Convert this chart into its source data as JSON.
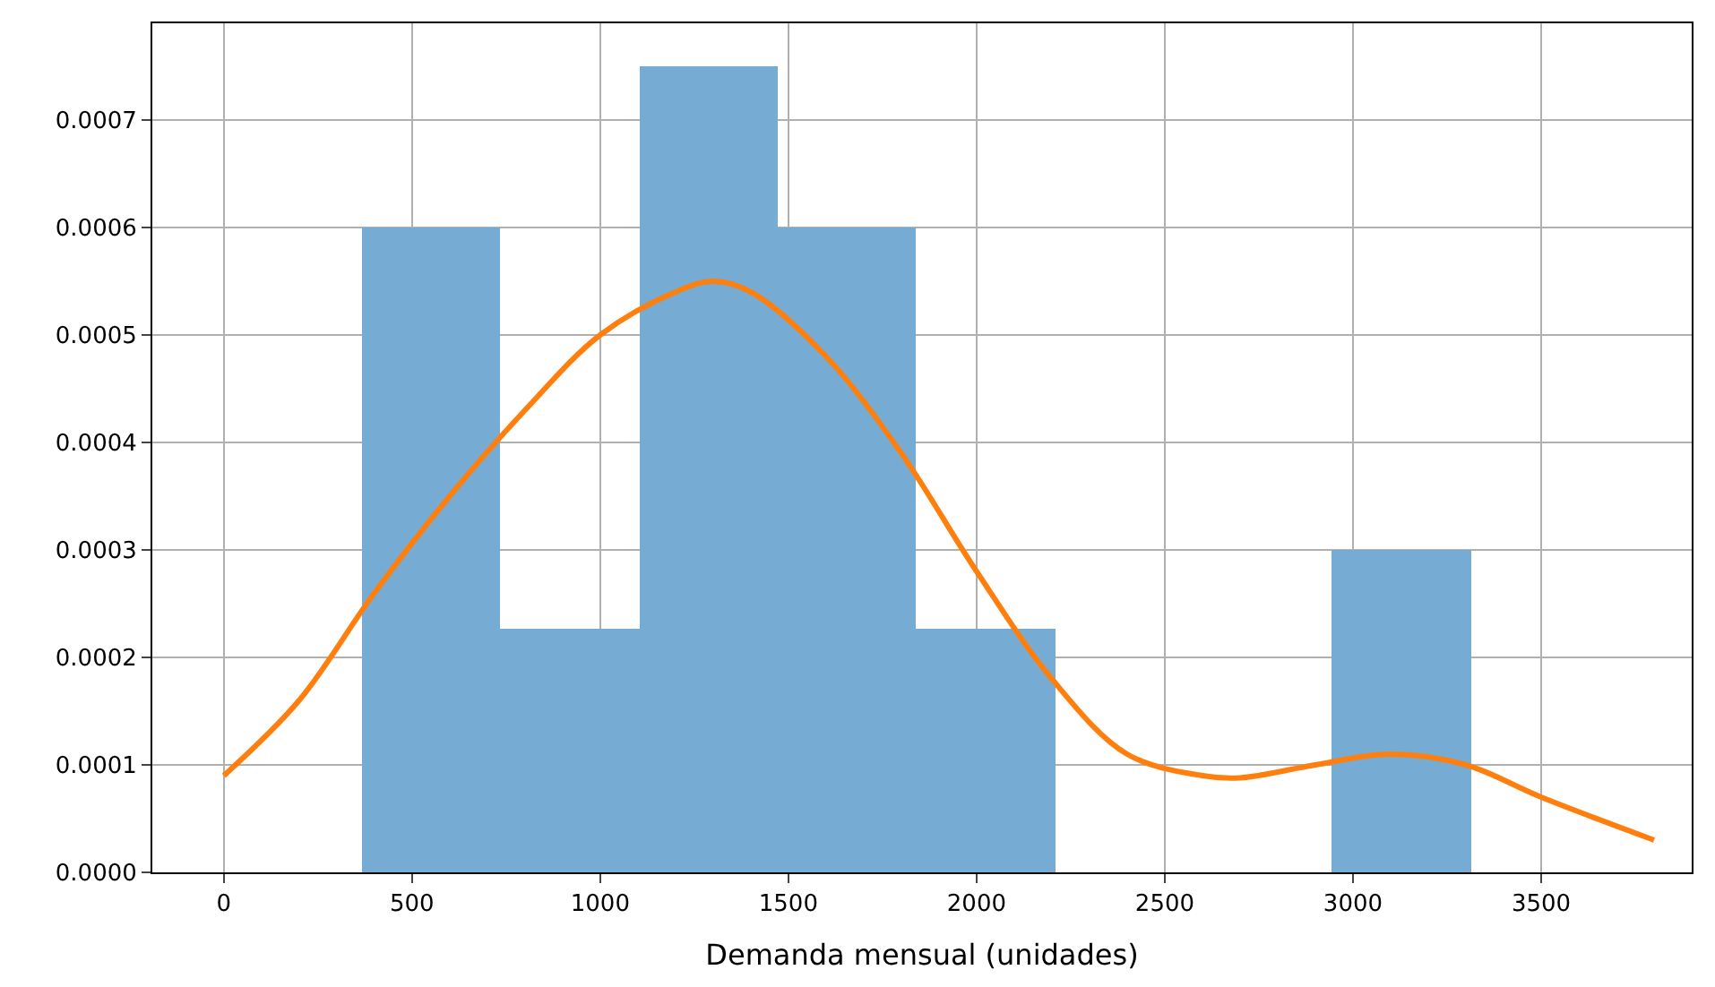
{
  "chart_data": {
    "type": "histogram",
    "xlabel": "Demanda mensual (unidades)",
    "series": [
      {
        "bins": [
          366,
          735,
          1103,
          1472,
          1840,
          2209,
          2577,
          2945,
          3314
        ],
        "values": [
          0.0006,
          0.000226,
          0.00075,
          0.0006,
          0.000226,
          0,
          0,
          0.0003
        ],
        "color": "#76acd3"
      },
      {
        "type": "line",
        "x": [
          0,
          200,
          400,
          600,
          800,
          1000,
          1200,
          1300,
          1400,
          1600,
          1800,
          2000,
          2200,
          2400,
          2600,
          2700,
          2900,
          3100,
          3300,
          3500,
          3800
        ],
        "values": [
          9e-05,
          0.00016,
          0.00026,
          0.00035,
          0.00043,
          0.0005,
          0.00054,
          0.00055,
          0.00054,
          0.00048,
          0.00039,
          0.00028,
          0.00018,
          0.00011,
          9e-05,
          8.8e-05,
          0.0001,
          0.00011,
          0.0001,
          7e-05,
          3e-05
        ],
        "color": "#ff7f0e"
      }
    ],
    "xlim": [
      -190,
      3900
    ],
    "xticks": [
      0,
      500,
      1000,
      1500,
      2000,
      2500,
      3000,
      3500
    ],
    "ylim": [
      0,
      0.00079
    ],
    "yticks": [
      {
        "value": 0,
        "label": "0.0000"
      },
      {
        "value": 0.0001,
        "label": "0.0001"
      },
      {
        "value": 0.0002,
        "label": "0.0002"
      },
      {
        "value": 0.0003,
        "label": "0.0003"
      },
      {
        "value": 0.0004,
        "label": "0.0004"
      },
      {
        "value": 0.0005,
        "label": "0.0005"
      },
      {
        "value": 0.0006,
        "label": "0.0006"
      },
      {
        "value": 0.0007,
        "label": "0.0007"
      }
    ],
    "grid": true
  }
}
